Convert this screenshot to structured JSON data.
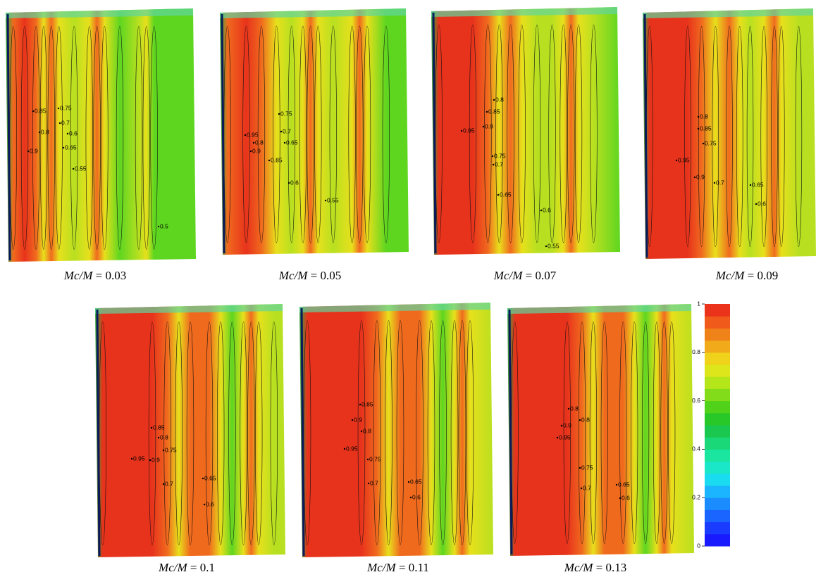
{
  "panels": [
    {
      "caption": {
        "variable": "Mc/M",
        "relation": "=",
        "value": "0.03"
      },
      "contour_labels": [
        "0.85",
        "0.75",
        "0.7",
        "0.8",
        "0.6",
        "0.65",
        "0.9",
        "0.55",
        "0.5"
      ]
    },
    {
      "caption": {
        "variable": "Mc/M",
        "relation": "=",
        "value": "0.05"
      },
      "contour_labels": [
        "0.75",
        "0.95",
        "0.7",
        "0.8",
        "0.65",
        "0.9",
        "0.85",
        "0.6",
        "0.55"
      ]
    },
    {
      "caption": {
        "variable": "Mc/M",
        "relation": "=",
        "value": "0.07"
      },
      "contour_labels": [
        "0.8",
        "0.85",
        "0.95",
        "0.9",
        "0.75",
        "0.7",
        "0.65",
        "0.6",
        "0.55"
      ]
    },
    {
      "caption": {
        "variable": "Mc/M",
        "relation": "=",
        "value": "0.09"
      },
      "contour_labels": [
        "0.8",
        "0.85",
        "0.75",
        "0.95",
        "0.9",
        "0.7",
        "0.65",
        "0.6"
      ]
    },
    {
      "caption": {
        "variable": "Mc/M",
        "relation": "=",
        "value": "0.1"
      },
      "contour_labels": [
        "0.85",
        "0.8",
        "0.75",
        "0.95",
        "0.9",
        "0.7",
        "0.65",
        "0.6"
      ]
    },
    {
      "caption": {
        "variable": "Mc/M",
        "relation": "=",
        "value": "0.11"
      },
      "contour_labels": [
        "0.85",
        "0.9",
        "0.8",
        "0.95",
        "0.75",
        "0.7",
        "0.65",
        "0.6"
      ]
    },
    {
      "caption": {
        "variable": "Mc/M",
        "relation": "=",
        "value": "0.13"
      },
      "contour_labels": [
        "0.8",
        "0.9",
        "0.8",
        "0.95",
        "0.75",
        "0.7",
        "0.65",
        "0.6"
      ]
    }
  ],
  "colorbar": {
    "range": [
      0,
      1
    ],
    "ticks": [
      0,
      0.2,
      0.4,
      0.6,
      0.8,
      1
    ]
  }
}
